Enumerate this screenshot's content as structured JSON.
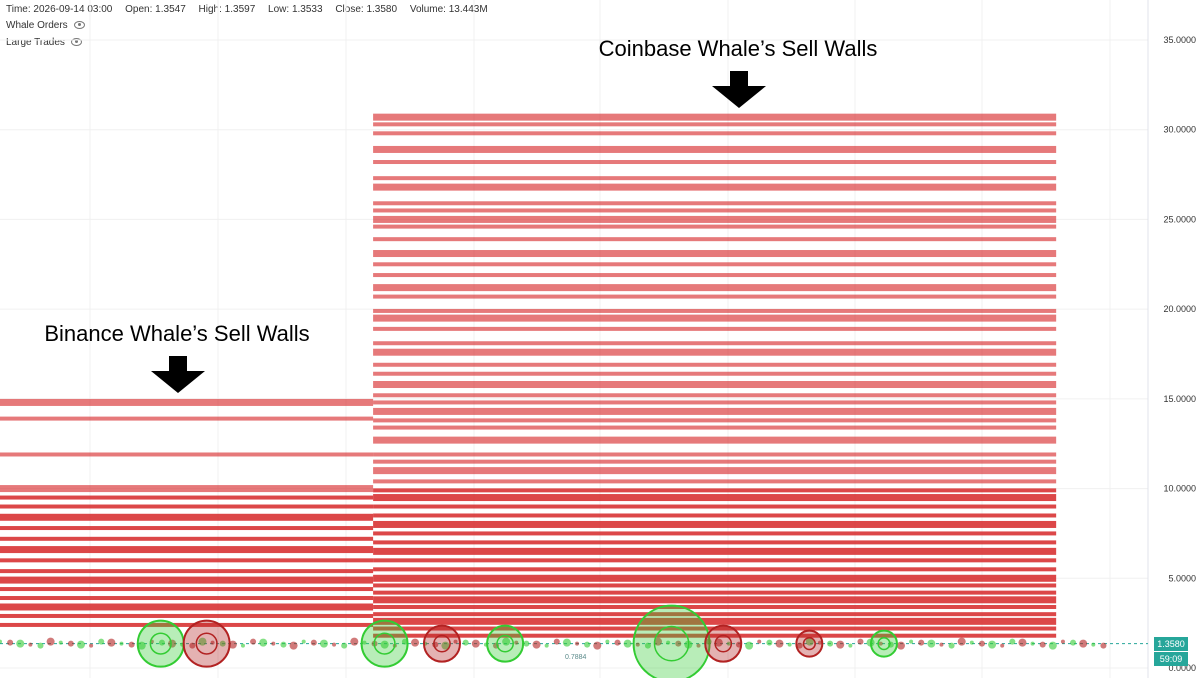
{
  "header": {
    "time": "Time: 2026-09-14 03:00",
    "open": "Open: 1.3547",
    "high": "High: 1.3597",
    "low": "Low: 1.3533",
    "close": "Close: 1.3580",
    "volume": "Volume: 13.443M"
  },
  "layers": [
    {
      "label": "Whale Orders",
      "icon": "eye-icon"
    },
    {
      "label": "Large Trades",
      "icon": "eye-icon"
    }
  ],
  "annotations": {
    "binance": "Binance Whale’s Sell Walls",
    "coinbase": "Coinbase Whale’s Sell Walls"
  },
  "price_badge": {
    "price": "1.3580",
    "countdown": "59:09"
  },
  "mini_label": "0.7884",
  "colors": {
    "sell_wall": "#d62728",
    "buy_bubble": "#33cc33",
    "sell_bubble": "#b22222",
    "badge": "#26a69a",
    "axis_text": "#333333",
    "grid": "#f0f0f0"
  },
  "chart_data": {
    "type": "scatter",
    "y_axis": {
      "ticks": [
        "35.0000",
        "30.0000",
        "25.0000",
        "20.0000",
        "15.0000",
        "10.0000",
        "5.0000",
        "0.0000"
      ],
      "tick_values": [
        35,
        30,
        25,
        20,
        15,
        10,
        5,
        0
      ],
      "range": [
        0,
        35.5
      ],
      "position": "right"
    },
    "current_price": 1.358,
    "walls": [
      {
        "exchange": "Binance",
        "x_start": 0.0,
        "x_end": 0.325,
        "prices": [
          14.8,
          13.9,
          11.9,
          10.0,
          9.5,
          9.0,
          8.4,
          7.8,
          7.2,
          6.6,
          6.0,
          5.4,
          4.9,
          4.4,
          3.9,
          3.4,
          2.9,
          2.4
        ]
      },
      {
        "exchange": "Coinbase",
        "x_start": 0.325,
        "x_end": 0.92,
        "prices": [
          30.7,
          30.3,
          29.8,
          28.9,
          28.2,
          27.3,
          26.8,
          25.9,
          25.5,
          25.0,
          24.6,
          23.9,
          23.1,
          22.5,
          21.9,
          21.2,
          20.7,
          19.9,
          19.5,
          18.9,
          18.1,
          17.6,
          16.9,
          16.4,
          15.8,
          15.2,
          14.8,
          14.3,
          13.8,
          13.4,
          12.7,
          11.9,
          11.5,
          11.0,
          10.4,
          9.9,
          9.5,
          9.0,
          8.5,
          8.0,
          7.5,
          7.0,
          6.5,
          6.0,
          5.5,
          5.0,
          4.6,
          4.2,
          3.8,
          3.4,
          3.0,
          2.6,
          2.2,
          1.8
        ]
      }
    ],
    "large_trades": [
      {
        "x": 0.14,
        "side": "buy",
        "size": 3
      },
      {
        "x": 0.18,
        "side": "sell",
        "size": 3
      },
      {
        "x": 0.335,
        "side": "buy",
        "size": 3
      },
      {
        "x": 0.385,
        "side": "sell",
        "size": 2
      },
      {
        "x": 0.44,
        "side": "buy",
        "size": 2
      },
      {
        "x": 0.585,
        "side": "buy",
        "size": 6
      },
      {
        "x": 0.63,
        "side": "sell",
        "size": 2
      },
      {
        "x": 0.705,
        "side": "sell",
        "size": 1
      },
      {
        "x": 0.77,
        "side": "buy",
        "size": 1
      }
    ]
  }
}
